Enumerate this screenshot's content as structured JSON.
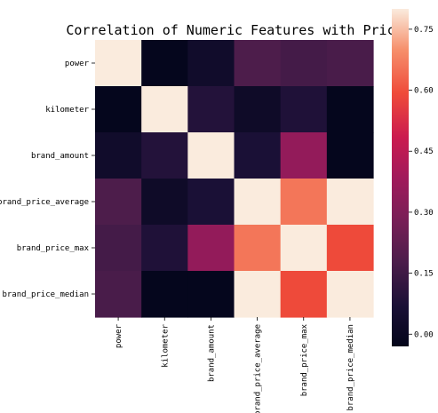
{
  "chart_data": {
    "type": "heatmap",
    "title": "Correlation of Numeric Features with Price",
    "xlabel": "",
    "ylabel": "",
    "rows": [
      "power",
      "kilometer",
      "brand_amount",
      "brand_price_average",
      "brand_price_max",
      "brand_price_median"
    ],
    "columns": [
      "power",
      "kilometer",
      "brand_amount",
      "brand_price_average",
      "brand_price_max",
      "brand_price_median"
    ],
    "values": [
      [
        0.8,
        -0.02,
        0.03,
        0.18,
        0.16,
        0.17
      ],
      [
        -0.02,
        0.8,
        0.09,
        0.02,
        0.08,
        -0.02
      ],
      [
        0.03,
        0.09,
        0.8,
        0.07,
        0.35,
        -0.02
      ],
      [
        0.18,
        0.02,
        0.07,
        0.8,
        0.66,
        0.8
      ],
      [
        0.16,
        0.08,
        0.35,
        0.66,
        0.8,
        0.59
      ],
      [
        0.17,
        -0.02,
        -0.02,
        0.8,
        0.59,
        0.8
      ]
    ],
    "colorbar": {
      "range": [
        -0.03,
        0.8
      ],
      "ticks": [
        0.0,
        0.15,
        0.3,
        0.45,
        0.6,
        0.75
      ],
      "tick_labels": [
        "0.00",
        "0.15",
        "0.30",
        "0.45",
        "0.60",
        "0.75"
      ],
      "colormap": "rocket"
    }
  }
}
